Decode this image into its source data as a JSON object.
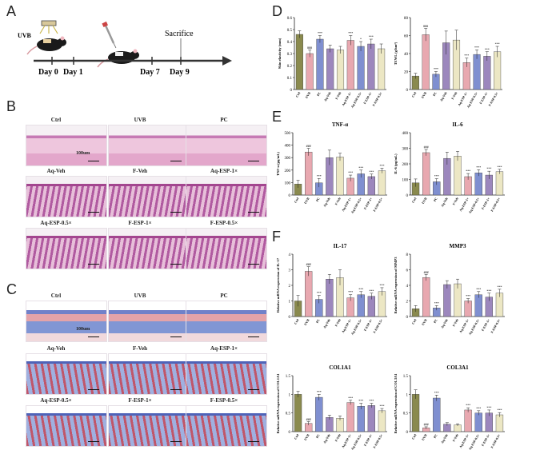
{
  "panels": {
    "A": "A",
    "B": "B",
    "C": "C",
    "D": "D",
    "E": "E",
    "F": "F"
  },
  "timeline": {
    "uvb": "UVB",
    "day0": "Day 0",
    "day1": "Day 1",
    "day7": "Day 7",
    "day9": "Day 9",
    "sacrifice": "Sacrifice"
  },
  "he": {
    "labels": [
      "Ctrl",
      "UVB",
      "PC",
      "Aq-Veh",
      "F-Veh",
      "Aq-ESP-1×",
      "Aq-ESP-0.5×",
      "F-ESP-1×",
      "F-ESP-0.5×"
    ],
    "scale": "100um"
  },
  "mt": {
    "labels": [
      "Ctrl",
      "UVB",
      "PC",
      "Aq-Veh",
      "F-Veh",
      "Aq-ESP-1×",
      "Aq-ESP-0.5×",
      "F-ESP-1×",
      "F-ESP-0.5×"
    ],
    "scale": "100um"
  },
  "colors": {
    "olive": "#8a8a4e",
    "pink": "#e8a8b0",
    "blue": "#7f8fd0",
    "purple": "#9c87bd",
    "cream": "#ece7c4",
    "heBg": "#e9b9d2",
    "mtBg": "#f3f0f6"
  },
  "chart_data": [
    {
      "type": "bar",
      "id": "D1",
      "title": "",
      "ylabel": "Skin elasticity (mm)",
      "ylim": [
        0,
        0.6
      ],
      "yticks": [
        0,
        0.1,
        0.2,
        0.3,
        0.4,
        0.5,
        0.6
      ],
      "categories": [
        "Ctrl",
        "UVB",
        "PC",
        "Aq-Veh",
        "F-Veh",
        "Aq-ESP-1×",
        "Aq-ESP-0.5×",
        "F-ESP-1×",
        "F-ESP-0.5×"
      ],
      "values": [
        0.46,
        0.3,
        0.42,
        0.34,
        0.33,
        0.41,
        0.36,
        0.38,
        0.34
      ],
      "errors": [
        0.03,
        0.03,
        0.03,
        0.03,
        0.03,
        0.04,
        0.04,
        0.04,
        0.04
      ],
      "marks": [
        "",
        "###",
        "***",
        "",
        "",
        "***",
        "*",
        "***",
        ""
      ]
    },
    {
      "type": "bar",
      "id": "D2",
      "title": "",
      "ylabel": "TEWL (g/hm²)",
      "ylim": [
        0,
        80
      ],
      "yticks": [
        0,
        20,
        40,
        60,
        80
      ],
      "categories": [
        "Ctrl",
        "UVB",
        "PC",
        "Aq-Veh",
        "F-Veh",
        "Aq-ESP-1×",
        "Aq-ESP-0.5×",
        "F-ESP-1×",
        "F-ESP-0.5×"
      ],
      "values": [
        15,
        61,
        17,
        52,
        55,
        30,
        39,
        37,
        42
      ],
      "errors": [
        3,
        7,
        3,
        13,
        11,
        5,
        5,
        5,
        6
      ],
      "marks": [
        "",
        "###",
        "***",
        "",
        "",
        "***",
        "***",
        "***",
        "***"
      ]
    },
    {
      "type": "bar",
      "id": "E1",
      "title": "TNF-α",
      "ylabel": "TNF-α (pg/mL)",
      "ylim": [
        0,
        500
      ],
      "yticks": [
        0,
        100,
        200,
        300,
        400,
        500
      ],
      "categories": [
        "Ctrl",
        "UVB",
        "PC",
        "Aq-Veh",
        "F-Veh",
        "Aq-ESP-1×",
        "Aq-ESP-0.5×",
        "F-ESP-1×",
        "F-ESP-0.5×"
      ],
      "values": [
        88,
        345,
        98,
        300,
        305,
        135,
        170,
        148,
        195
      ],
      "errors": [
        30,
        30,
        35,
        60,
        30,
        25,
        30,
        20,
        20
      ],
      "marks": [
        "",
        "###",
        "***",
        "",
        "",
        "***",
        "***",
        "***",
        "***"
      ]
    },
    {
      "type": "bar",
      "id": "E2",
      "title": "IL-6",
      "ylabel": "IL-6 (pg/mL)",
      "ylim": [
        0,
        400
      ],
      "yticks": [
        0,
        100,
        200,
        300,
        400
      ],
      "categories": [
        "Ctrl",
        "UVB",
        "PC",
        "Aq-Veh",
        "F-Veh",
        "Aq-ESP-1×",
        "Aq-ESP-0.5×",
        "F-ESP-1×",
        "F-ESP-0.5×"
      ],
      "values": [
        78,
        272,
        85,
        235,
        250,
        118,
        142,
        128,
        150
      ],
      "errors": [
        25,
        20,
        20,
        40,
        30,
        20,
        20,
        25,
        15
      ],
      "marks": [
        "",
        "###",
        "***",
        "",
        "",
        "***",
        "***",
        "***",
        "***"
      ]
    },
    {
      "type": "bar",
      "id": "F1",
      "title": "IL-17",
      "ylabel": "Relative mRNA expression of IL-17",
      "ylim": [
        0,
        4
      ],
      "yticks": [
        0,
        1,
        2,
        3,
        4
      ],
      "categories": [
        "Ctrl",
        "UVB",
        "PC",
        "Aq-Veh",
        "F-Veh",
        "Aq-ESP-1×",
        "Aq-ESP-0.5×",
        "F-ESP-1×",
        "F-ESP-0.5×"
      ],
      "values": [
        1.0,
        2.9,
        1.1,
        2.4,
        2.5,
        1.2,
        1.4,
        1.3,
        1.6
      ],
      "errors": [
        0.35,
        0.3,
        0.25,
        0.3,
        0.5,
        0.2,
        0.2,
        0.2,
        0.25
      ],
      "marks": [
        "",
        "###",
        "***",
        "",
        "",
        "***",
        "***",
        "***",
        "***"
      ]
    },
    {
      "type": "bar",
      "id": "F2",
      "title": "MMP3",
      "ylabel": "Relative mRNA expression of MMP3",
      "ylim": [
        0,
        8
      ],
      "yticks": [
        0,
        2,
        4,
        6,
        8
      ],
      "categories": [
        "Ctrl",
        "UVB",
        "PC",
        "Aq-Veh",
        "F-Veh",
        "Aq-ESP-1×",
        "Aq-ESP-0.5×",
        "F-ESP-1×",
        "F-ESP-0.5×"
      ],
      "values": [
        1.0,
        5.0,
        1.1,
        4.1,
        4.2,
        2.0,
        2.8,
        2.5,
        3.0
      ],
      "errors": [
        0.4,
        0.4,
        0.3,
        0.5,
        0.6,
        0.3,
        0.4,
        0.5,
        0.5
      ],
      "marks": [
        "",
        "###",
        "***",
        "",
        "",
        "***",
        "***",
        "***",
        "***"
      ]
    },
    {
      "type": "bar",
      "id": "F3",
      "title": "COL1A1",
      "ylabel": "Relative mRNA expression of COL1A1",
      "ylim": [
        0,
        1.5
      ],
      "yticks": [
        0,
        0.5,
        1.0,
        1.5
      ],
      "categories": [
        "Ctrl",
        "UVB",
        "PC",
        "Aq-Veh",
        "F-Veh",
        "Aq-ESP-1×",
        "Aq-ESP-0.5×",
        "F-ESP-1×",
        "F-ESP-0.5×"
      ],
      "values": [
        1.0,
        0.22,
        0.92,
        0.38,
        0.36,
        0.78,
        0.68,
        0.7,
        0.56
      ],
      "errors": [
        0.08,
        0.05,
        0.08,
        0.06,
        0.06,
        0.06,
        0.08,
        0.06,
        0.06
      ],
      "marks": [
        "",
        "###",
        "***",
        "",
        "",
        "***",
        "***",
        "***",
        "***"
      ]
    },
    {
      "type": "bar",
      "id": "F4",
      "title": "COL3A1",
      "ylabel": "Relative mRNA expression of COL3A1",
      "ylim": [
        0,
        1.5
      ],
      "yticks": [
        0,
        0.5,
        1.0,
        1.5
      ],
      "categories": [
        "Ctrl",
        "UVB",
        "PC",
        "Aq-Veh",
        "F-Veh",
        "Aq-ESP-1×",
        "Aq-ESP-0.5×",
        "F-ESP-1×",
        "F-ESP-0.5×"
      ],
      "values": [
        1.0,
        0.1,
        0.9,
        0.2,
        0.18,
        0.58,
        0.5,
        0.5,
        0.45
      ],
      "errors": [
        0.12,
        0.03,
        0.08,
        0.04,
        0.03,
        0.06,
        0.06,
        0.08,
        0.06
      ],
      "marks": [
        "",
        "###",
        "***",
        "",
        "",
        "***",
        "***",
        "***",
        "***"
      ]
    }
  ]
}
